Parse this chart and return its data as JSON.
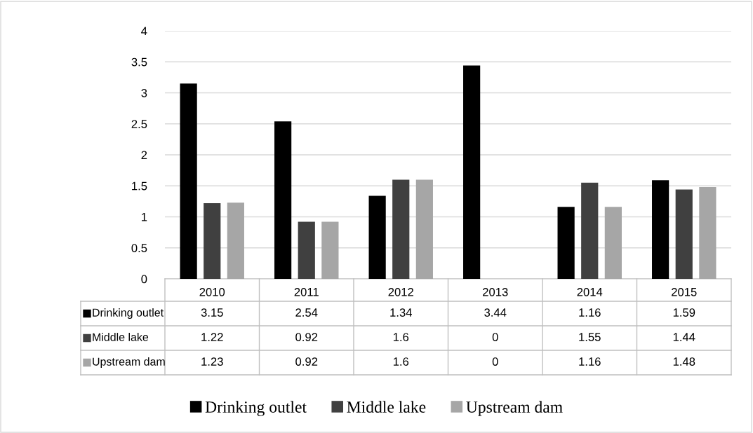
{
  "chart_data": {
    "type": "bar",
    "categories": [
      "2010",
      "2011",
      "2012",
      "2013",
      "2014",
      "2015"
    ],
    "series": [
      {
        "name": "Drinking outlet",
        "color": "#000000",
        "values": [
          3.15,
          2.54,
          1.34,
          3.44,
          1.16,
          1.59
        ]
      },
      {
        "name": "Middle lake",
        "color": "#404040",
        "values": [
          1.22,
          0.92,
          1.6,
          0,
          1.55,
          1.44
        ]
      },
      {
        "name": "Upstream dam",
        "color": "#a6a6a6",
        "values": [
          1.23,
          0.92,
          1.6,
          0,
          1.16,
          1.48
        ]
      }
    ],
    "ylim": [
      0,
      4
    ],
    "yticks": [
      0,
      0.5,
      1,
      1.5,
      2,
      2.5,
      3,
      3.5,
      4
    ],
    "grid": "y",
    "legend": "bottom",
    "data_labels": true
  }
}
